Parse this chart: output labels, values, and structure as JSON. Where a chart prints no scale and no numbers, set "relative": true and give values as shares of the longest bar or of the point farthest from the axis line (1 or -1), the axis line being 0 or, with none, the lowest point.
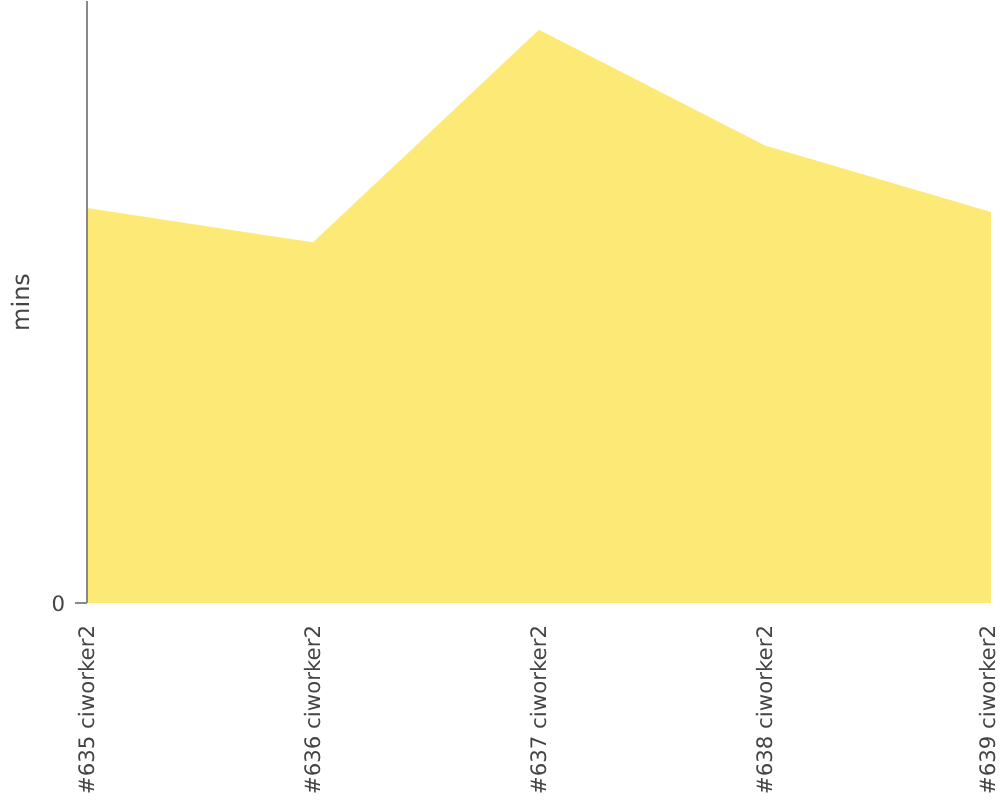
{
  "chart_data": {
    "type": "area",
    "ylabel": "mins",
    "relative": true,
    "annotations": [
      "0"
    ],
    "categories": [
      "#635 ciworker2",
      "#636 ciworker2",
      "#637 ciworker2",
      "#638 ciworker2",
      "#639 ciworker2"
    ],
    "series": [
      {
        "color": "#fdea76",
        "values": [
          0.689,
          0.629,
          1,
          0.798,
          0.682
        ]
      }
    ],
    "legend": false
  }
}
